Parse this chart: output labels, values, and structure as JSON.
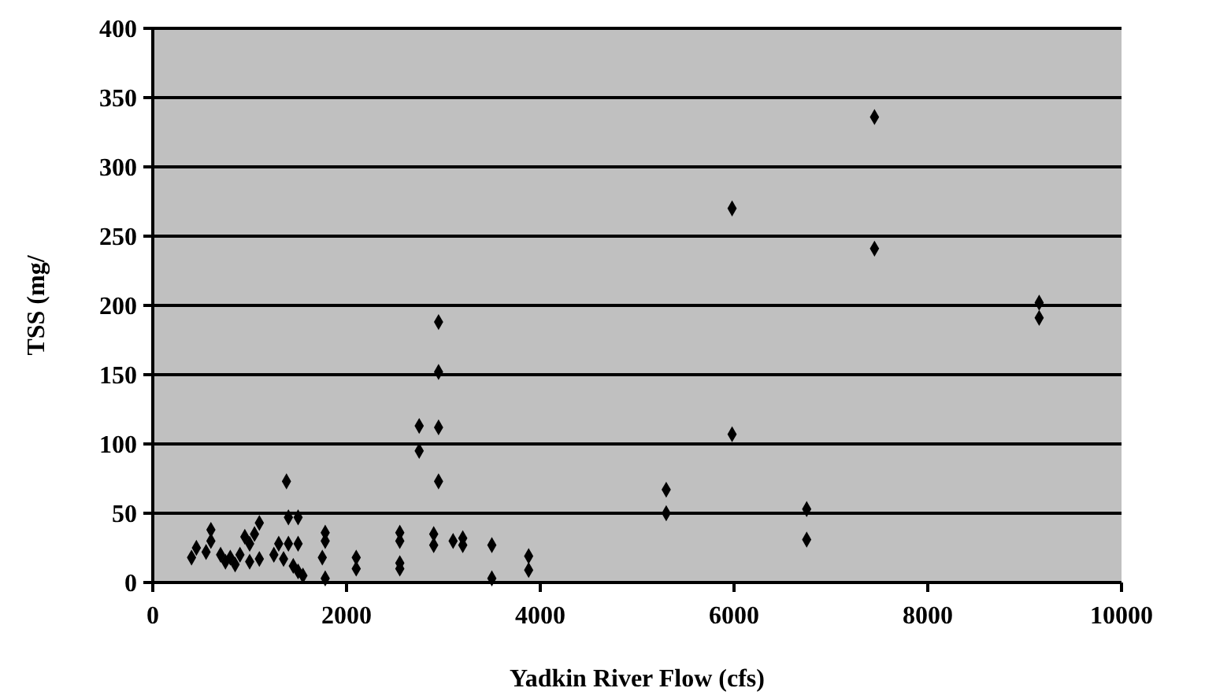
{
  "chart_data": {
    "type": "scatter",
    "xlabel": "Yadkin River Flow (cfs)",
    "ylabel": "TSS (mg/",
    "xlim": [
      0,
      10000
    ],
    "xticks": [
      0,
      2000,
      4000,
      6000,
      8000,
      10000
    ],
    "ylim": [
      0,
      400
    ],
    "yticks": [
      0,
      50,
      100,
      150,
      200,
      250,
      300,
      350,
      400
    ],
    "grid": "y",
    "marker": "diamond",
    "series": [
      {
        "color": "#000000",
        "x": [
          7450,
          7450,
          5980,
          5980,
          9150,
          9150,
          6750,
          6750,
          5300,
          5300,
          2950,
          2950,
          2950,
          2750,
          2750,
          2950,
          1380,
          3500,
          3500,
          3880,
          3880,
          2900,
          2900,
          3200,
          3200,
          3100,
          2550,
          2550,
          2550,
          2550,
          2100,
          2100,
          1780,
          1780,
          1750,
          1780,
          1500,
          1400,
          1300,
          1400,
          1500,
          1250,
          1350,
          1450,
          1500,
          1550,
          1100,
          1050,
          950,
          1000,
          900,
          800,
          750,
          1000,
          1100,
          600,
          600,
          550,
          450,
          400,
          700,
          850
        ],
        "values": [
          336,
          241,
          270,
          107,
          202,
          191,
          53,
          31,
          67,
          50,
          188,
          152,
          112,
          113,
          95,
          73,
          73,
          27,
          3,
          19,
          9,
          35,
          27,
          32,
          27,
          30,
          36,
          30,
          14,
          10,
          18,
          10,
          36,
          30,
          18,
          3,
          47,
          47,
          28,
          28,
          28,
          20,
          17,
          12,
          8,
          5,
          43,
          35,
          33,
          28,
          20,
          18,
          15,
          15,
          17,
          38,
          30,
          22,
          25,
          18,
          20,
          13
        ]
      }
    ]
  }
}
